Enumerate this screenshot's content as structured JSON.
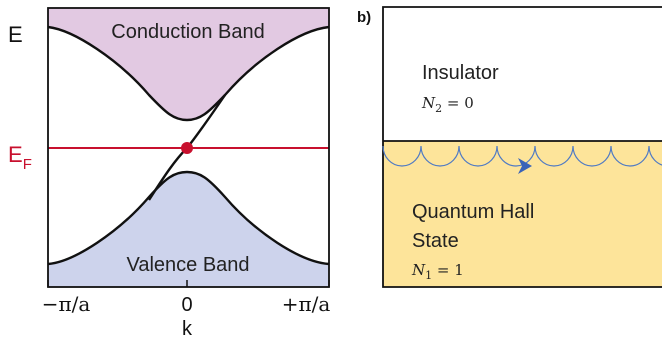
{
  "panel_a": {
    "energy_label": "E",
    "fermi_label_main": "E",
    "fermi_label_sub": "F",
    "conduction_label": "Conduction Band",
    "valence_label": "Valence Band",
    "k_ticks": [
      "−π/a",
      "0",
      "+π/a"
    ],
    "k_axis_label": "k",
    "colors": {
      "conduction_fill": "#e2c9e2",
      "valence_fill": "#cdd3ec",
      "fermi_line": "#c8102e",
      "band_curve": "#111111"
    }
  },
  "panel_b": {
    "panel_label": "b)",
    "insulator_label": "Insulator",
    "insulator_invariant": "N",
    "insulator_invariant_sub": "2",
    "insulator_invariant_value": " = 0",
    "qh_label_line1": "Quantum Hall",
    "qh_label_line2": "State",
    "qh_invariant": "N",
    "qh_invariant_sub": "1",
    "qh_invariant_value": " = 1",
    "colors": {
      "qh_fill": "#fde49a",
      "edge_orbit": "#4f7ac4",
      "arrow": "#3a63b8"
    }
  }
}
